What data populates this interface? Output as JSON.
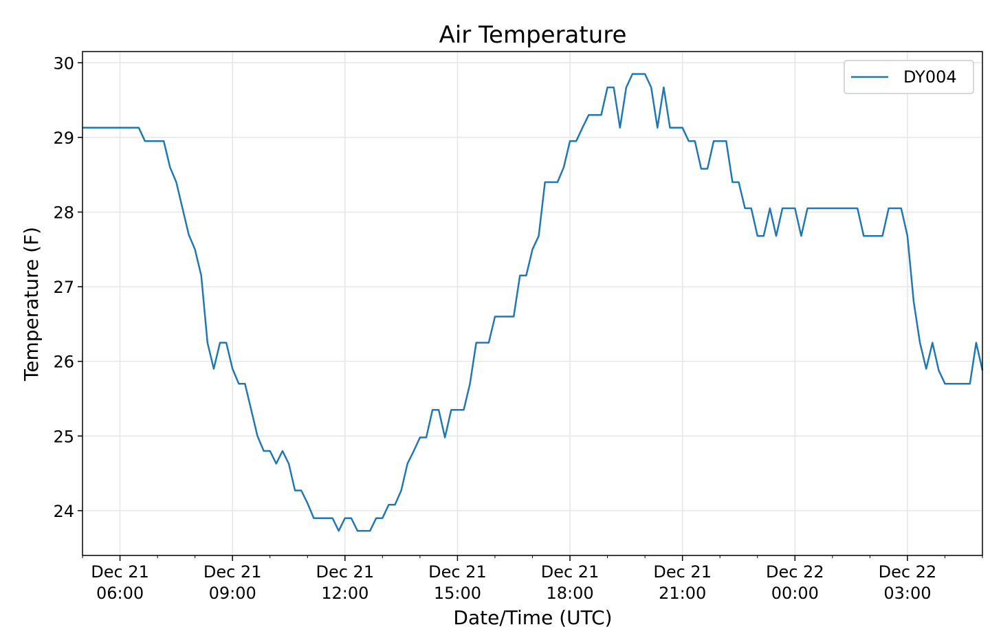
{
  "chart_data": {
    "type": "line",
    "title": "Air Temperature",
    "xlabel": "Date/Time (UTC)",
    "ylabel": "Temperature (F)",
    "ylim": [
      23.4,
      30.15
    ],
    "xlim": [
      "2021-12-21T05:00",
      "2021-12-22T05:00"
    ],
    "yticks": [
      24,
      25,
      26,
      27,
      28,
      29,
      30
    ],
    "xticks": [
      {
        "t": "2021-12-21T06:00",
        "line1": "Dec 21",
        "line2": "06:00"
      },
      {
        "t": "2021-12-21T09:00",
        "line1": "Dec 21",
        "line2": "09:00"
      },
      {
        "t": "2021-12-21T12:00",
        "line1": "Dec 21",
        "line2": "12:00"
      },
      {
        "t": "2021-12-21T15:00",
        "line1": "Dec 21",
        "line2": "15:00"
      },
      {
        "t": "2021-12-21T18:00",
        "line1": "Dec 21",
        "line2": "18:00"
      },
      {
        "t": "2021-12-21T21:00",
        "line1": "Dec 21",
        "line2": "21:00"
      },
      {
        "t": "2021-12-22T00:00",
        "line1": "Dec 22",
        "line2": "00:00"
      },
      {
        "t": "2021-12-22T03:00",
        "line1": "Dec 22",
        "line2": "03:00"
      }
    ],
    "grid": true,
    "legend": "top-right",
    "color": "#1f77b4",
    "series": [
      {
        "name": "DY004",
        "points": [
          [
            "2021-12-21T05:00",
            29.13
          ],
          [
            "2021-12-21T06:30",
            29.13
          ],
          [
            "2021-12-21T06:40",
            28.95
          ],
          [
            "2021-12-21T07:10",
            28.95
          ],
          [
            "2021-12-21T07:20",
            28.6
          ],
          [
            "2021-12-21T07:30",
            28.4
          ],
          [
            "2021-12-21T07:50",
            27.7
          ],
          [
            "2021-12-21T08:00",
            27.5
          ],
          [
            "2021-12-21T08:10",
            27.15
          ],
          [
            "2021-12-21T08:20",
            26.25
          ],
          [
            "2021-12-21T08:30",
            25.9
          ],
          [
            "2021-12-21T08:40",
            26.25
          ],
          [
            "2021-12-21T08:50",
            26.25
          ],
          [
            "2021-12-21T09:00",
            25.9
          ],
          [
            "2021-12-21T09:10",
            25.7
          ],
          [
            "2021-12-21T09:20",
            25.7
          ],
          [
            "2021-12-21T09:30",
            25.35
          ],
          [
            "2021-12-21T09:40",
            25.0
          ],
          [
            "2021-12-21T09:50",
            24.8
          ],
          [
            "2021-12-21T10:00",
            24.8
          ],
          [
            "2021-12-21T10:10",
            24.63
          ],
          [
            "2021-12-21T10:20",
            24.8
          ],
          [
            "2021-12-21T10:30",
            24.63
          ],
          [
            "2021-12-21T10:40",
            24.27
          ],
          [
            "2021-12-21T10:50",
            24.27
          ],
          [
            "2021-12-21T11:00",
            24.1
          ],
          [
            "2021-12-21T11:10",
            23.9
          ],
          [
            "2021-12-21T11:40",
            23.9
          ],
          [
            "2021-12-21T11:50",
            23.73
          ],
          [
            "2021-12-21T12:00",
            23.9
          ],
          [
            "2021-12-21T12:10",
            23.9
          ],
          [
            "2021-12-21T12:20",
            23.73
          ],
          [
            "2021-12-21T12:40",
            23.73
          ],
          [
            "2021-12-21T12:50",
            23.9
          ],
          [
            "2021-12-21T13:00",
            23.9
          ],
          [
            "2021-12-21T13:10",
            24.08
          ],
          [
            "2021-12-21T13:20",
            24.08
          ],
          [
            "2021-12-21T13:30",
            24.27
          ],
          [
            "2021-12-21T13:40",
            24.63
          ],
          [
            "2021-12-21T13:50",
            24.8
          ],
          [
            "2021-12-21T14:00",
            24.98
          ],
          [
            "2021-12-21T14:10",
            24.98
          ],
          [
            "2021-12-21T14:20",
            25.35
          ],
          [
            "2021-12-21T14:30",
            25.35
          ],
          [
            "2021-12-21T14:40",
            24.98
          ],
          [
            "2021-12-21T14:50",
            25.35
          ],
          [
            "2021-12-21T15:10",
            25.35
          ],
          [
            "2021-12-21T15:20",
            25.7
          ],
          [
            "2021-12-21T15:30",
            26.25
          ],
          [
            "2021-12-21T15:50",
            26.25
          ],
          [
            "2021-12-21T16:00",
            26.6
          ],
          [
            "2021-12-21T16:30",
            26.6
          ],
          [
            "2021-12-21T16:40",
            27.15
          ],
          [
            "2021-12-21T16:50",
            27.15
          ],
          [
            "2021-12-21T17:00",
            27.5
          ],
          [
            "2021-12-21T17:10",
            27.68
          ],
          [
            "2021-12-21T17:20",
            28.4
          ],
          [
            "2021-12-21T17:40",
            28.4
          ],
          [
            "2021-12-21T17:50",
            28.6
          ],
          [
            "2021-12-21T18:00",
            28.95
          ],
          [
            "2021-12-21T18:10",
            28.95
          ],
          [
            "2021-12-21T18:20",
            29.13
          ],
          [
            "2021-12-21T18:30",
            29.3
          ],
          [
            "2021-12-21T18:50",
            29.3
          ],
          [
            "2021-12-21T19:00",
            29.67
          ],
          [
            "2021-12-21T19:10",
            29.67
          ],
          [
            "2021-12-21T19:20",
            29.13
          ],
          [
            "2021-12-21T19:30",
            29.67
          ],
          [
            "2021-12-21T19:40",
            29.85
          ],
          [
            "2021-12-21T20:00",
            29.85
          ],
          [
            "2021-12-21T20:10",
            29.67
          ],
          [
            "2021-12-21T20:20",
            29.13
          ],
          [
            "2021-12-21T20:30",
            29.67
          ],
          [
            "2021-12-21T20:40",
            29.13
          ],
          [
            "2021-12-21T21:00",
            29.13
          ],
          [
            "2021-12-21T21:10",
            28.95
          ],
          [
            "2021-12-21T21:20",
            28.95
          ],
          [
            "2021-12-21T21:30",
            28.58
          ],
          [
            "2021-12-21T21:40",
            28.58
          ],
          [
            "2021-12-21T21:50",
            28.95
          ],
          [
            "2021-12-21T22:10",
            28.95
          ],
          [
            "2021-12-21T22:20",
            28.4
          ],
          [
            "2021-12-21T22:30",
            28.4
          ],
          [
            "2021-12-21T22:40",
            28.05
          ],
          [
            "2021-12-21T22:50",
            28.05
          ],
          [
            "2021-12-21T23:00",
            27.68
          ],
          [
            "2021-12-21T23:10",
            27.68
          ],
          [
            "2021-12-21T23:20",
            28.05
          ],
          [
            "2021-12-21T23:30",
            27.68
          ],
          [
            "2021-12-21T23:40",
            28.05
          ],
          [
            "2021-12-22T00:00",
            28.05
          ],
          [
            "2021-12-22T00:10",
            27.68
          ],
          [
            "2021-12-22T00:20",
            28.05
          ],
          [
            "2021-12-22T01:40",
            28.05
          ],
          [
            "2021-12-22T01:50",
            27.68
          ],
          [
            "2021-12-22T02:20",
            27.68
          ],
          [
            "2021-12-22T02:30",
            28.05
          ],
          [
            "2021-12-22T02:50",
            28.05
          ],
          [
            "2021-12-22T03:00",
            27.68
          ],
          [
            "2021-12-22T03:10",
            26.8
          ],
          [
            "2021-12-22T03:20",
            26.25
          ],
          [
            "2021-12-22T03:30",
            25.9
          ],
          [
            "2021-12-22T03:40",
            26.25
          ],
          [
            "2021-12-22T03:50",
            25.88
          ],
          [
            "2021-12-22T04:00",
            25.7
          ],
          [
            "2021-12-22T04:40",
            25.7
          ],
          [
            "2021-12-22T04:50",
            26.25
          ],
          [
            "2021-12-22T05:00",
            25.88
          ]
        ]
      }
    ]
  }
}
